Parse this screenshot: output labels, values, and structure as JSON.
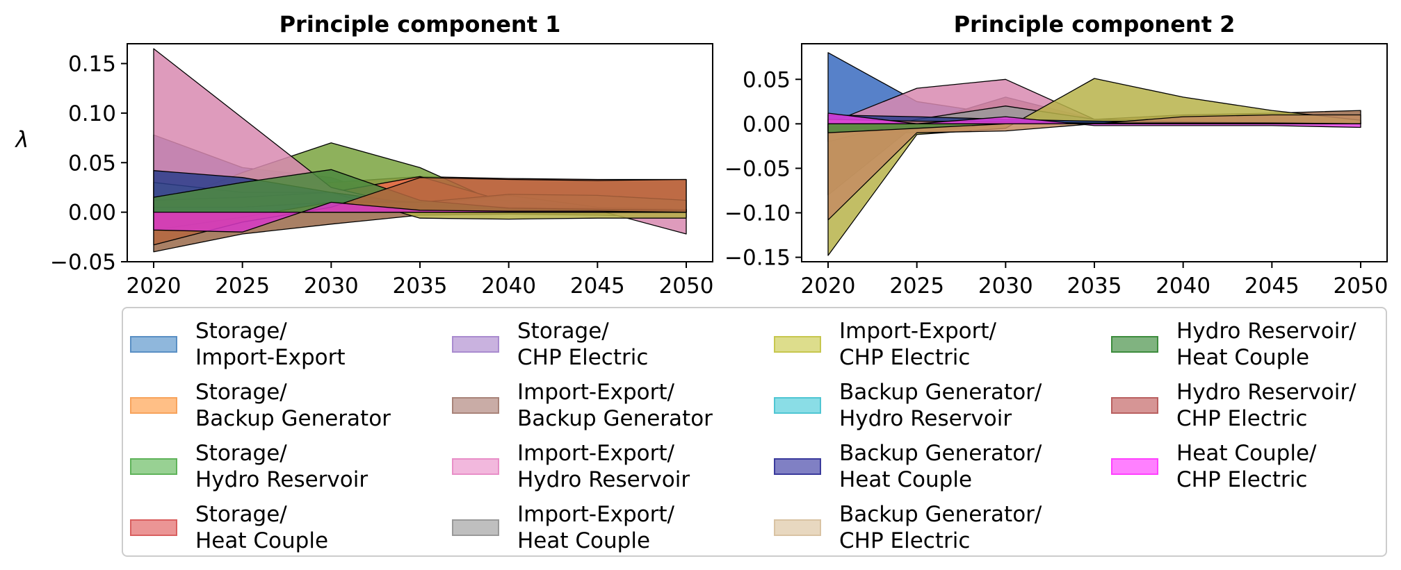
{
  "figure": {
    "ylabel": "λ",
    "legend_placement": "bottom"
  },
  "chart_data": [
    {
      "type": "area",
      "title": "Principle component 1",
      "xlabel": "",
      "ylabel": "λ",
      "x": [
        2020,
        2025,
        2030,
        2035,
        2040,
        2045,
        2050
      ],
      "xticks": [
        "2020",
        "2025",
        "2030",
        "2035",
        "2040",
        "2045",
        "2050"
      ],
      "ylim": [
        -0.05,
        0.17
      ],
      "yticks": [
        -0.05,
        0.0,
        0.05,
        0.1,
        0.15
      ],
      "ytick_labels": [
        "−0.05",
        "0.00",
        "0.05",
        "0.10",
        "0.15"
      ],
      "grid": false,
      "series": [
        {
          "name": "Storage/\nImport-Export",
          "values": [
            0.078,
            0.045,
            0.035,
            0.005,
            0.004,
            0.003,
            0.002
          ],
          "color": "#3a56a8"
        },
        {
          "name": "Storage/\nBackup Generator",
          "values": [
            0.01,
            0.018,
            0.03,
            0.036,
            0.034,
            0.033,
            0.033
          ],
          "color": "#f06a4c"
        },
        {
          "name": "Storage/\nHydro Reservoir",
          "values": [
            0.005,
            0.04,
            0.07,
            0.045,
            0.005,
            0.003,
            0.002
          ],
          "color": "#7aa340"
        },
        {
          "name": "Storage/\nHeat Couple",
          "values": [
            0.005,
            0.01,
            0.02,
            0.036,
            0.01,
            0.004,
            0.003
          ],
          "color": "#f06a4c"
        },
        {
          "name": "Storage/\nCHP Electric",
          "values": [
            0.0,
            0.01,
            0.015,
            0.01,
            0.012,
            0.003,
            0.002
          ],
          "color": "#b39bd6"
        },
        {
          "name": "Import-Export/\nBackup Generator",
          "values": [
            -0.04,
            -0.022,
            -0.012,
            -0.003,
            -0.002,
            -0.003,
            -0.005
          ],
          "color": "#9a6a4a"
        },
        {
          "name": "Import-Export/\nHydro Reservoir",
          "values": [
            0.165,
            0.095,
            0.025,
            0.004,
            0.003,
            0.002,
            -0.022
          ],
          "color": "#d88ab0"
        },
        {
          "name": "Import-Export/\nHeat Couple",
          "values": [
            0.03,
            0.02,
            0.02,
            0.008,
            0.017,
            0.005,
            0.003
          ],
          "color": "#9a9a9a"
        },
        {
          "name": "Import-Export/\nCHP Electric",
          "values": [
            0.012,
            0.015,
            0.02,
            -0.006,
            -0.007,
            -0.006,
            -0.006
          ],
          "color": "#b7b34a"
        },
        {
          "name": "Backup Generator/\nHydro Reservoir",
          "values": [
            0.005,
            0.005,
            0.01,
            0.004,
            0.003,
            0.002,
            0.001
          ],
          "color": "#5fc9d6"
        },
        {
          "name": "Backup Generator/\nHeat Couple",
          "values": [
            0.042,
            0.035,
            0.02,
            0.008,
            0.005,
            0.004,
            0.003
          ],
          "color": "#2c3e8c"
        },
        {
          "name": "Backup Generator/\nCHP Electric",
          "values": [
            -0.018,
            -0.005,
            0.01,
            0.01,
            0.018,
            0.017,
            0.012
          ],
          "color": "#c48d63"
        },
        {
          "name": "Hydro Reservoir/\nHeat Couple",
          "values": [
            0.015,
            0.03,
            0.043,
            0.012,
            0.004,
            0.003,
            0.002
          ],
          "color": "#4d8a40"
        },
        {
          "name": "Hydro Reservoir/\nCHP Electric",
          "values": [
            -0.033,
            -0.01,
            0.005,
            0.035,
            0.033,
            0.032,
            0.033
          ],
          "color": "#b5673f"
        },
        {
          "name": "Heat Couple/\nCHP Electric",
          "values": [
            -0.018,
            -0.02,
            0.01,
            0.002,
            0.001,
            0.001,
            0.0
          ],
          "color": "#d838c8"
        }
      ]
    },
    {
      "type": "area",
      "title": "Principle component 2",
      "xlabel": "",
      "ylabel": "",
      "x": [
        2020,
        2025,
        2030,
        2035,
        2040,
        2045,
        2050
      ],
      "xticks": [
        "2020",
        "2025",
        "2030",
        "2035",
        "2040",
        "2045",
        "2050"
      ],
      "ylim": [
        -0.155,
        0.09
      ],
      "yticks": [
        -0.15,
        -0.1,
        -0.05,
        0.0,
        0.05
      ],
      "ytick_labels": [
        "−0.15",
        "−0.10",
        "−0.05",
        "0.00",
        "0.05"
      ],
      "grid": false,
      "series": [
        {
          "name": "Storage/\nImport-Export",
          "values": [
            0.08,
            0.025,
            0.01,
            0.004,
            0.003,
            0.002,
            0.001
          ],
          "color": "#3a6bbf"
        },
        {
          "name": "Storage/\nBackup Generator",
          "values": [
            0.0,
            0.005,
            0.01,
            0.005,
            0.01,
            0.012,
            0.015
          ],
          "color": "#9a6a4a"
        },
        {
          "name": "Storage/\nHydro Reservoir",
          "values": [
            -0.01,
            -0.01,
            0.0,
            0.003,
            0.002,
            0.001,
            0.0
          ],
          "color": "#7aa340"
        },
        {
          "name": "Storage/\nHeat Couple",
          "values": [
            -0.005,
            0.0,
            0.005,
            0.003,
            0.002,
            0.001,
            0.0
          ],
          "color": "#f06a4c"
        },
        {
          "name": "Storage/\nCHP Electric",
          "values": [
            0.0,
            0.005,
            0.02,
            0.005,
            0.002,
            0.001,
            0.0
          ],
          "color": "#b39bd6"
        },
        {
          "name": "Import-Export/\nBackup Generator",
          "values": [
            -0.08,
            0.0,
            0.03,
            0.005,
            0.003,
            0.002,
            0.001
          ],
          "color": "#7a4a33"
        },
        {
          "name": "Import-Export/\nHydro Reservoir",
          "values": [
            0.0,
            0.04,
            0.05,
            0.005,
            0.003,
            0.002,
            0.001
          ],
          "color": "#d88ab0"
        },
        {
          "name": "Import-Export/\nHeat Couple",
          "values": [
            -0.02,
            0.005,
            0.02,
            0.005,
            0.003,
            0.002,
            0.001
          ],
          "color": "#9a9a9a"
        },
        {
          "name": "Import-Export/\nCHP Electric",
          "values": [
            -0.148,
            -0.012,
            -0.005,
            0.051,
            0.03,
            0.015,
            0.004
          ],
          "color": "#b7b34a"
        },
        {
          "name": "Backup Generator/\nHydro Reservoir",
          "values": [
            0.0,
            0.002,
            0.004,
            0.003,
            0.002,
            0.001,
            0.0
          ],
          "color": "#5fc9d6"
        },
        {
          "name": "Backup Generator/\nHeat Couple",
          "values": [
            0.01,
            0.008,
            0.005,
            0.003,
            0.002,
            0.001,
            0.0
          ],
          "color": "#2c3e8c"
        },
        {
          "name": "Backup Generator/\nCHP Electric",
          "values": [
            -0.108,
            -0.01,
            -0.008,
            0.0,
            0.008,
            0.01,
            0.01
          ],
          "color": "#c48d63"
        },
        {
          "name": "Hydro Reservoir/\nHeat Couple",
          "values": [
            -0.01,
            -0.005,
            0.0,
            0.001,
            0.001,
            0.0,
            0.0
          ],
          "color": "#4d8a40"
        },
        {
          "name": "Hydro Reservoir/\nCHP Electric",
          "values": [
            0.005,
            0.003,
            0.002,
            0.001,
            0.001,
            0.001,
            0.0
          ],
          "color": "#c77e7e"
        },
        {
          "name": "Heat Couple/\nCHP Electric",
          "values": [
            0.012,
            0.0,
            0.008,
            -0.002,
            -0.002,
            -0.002,
            -0.004
          ],
          "color": "#e040e0"
        }
      ]
    }
  ],
  "legend": [
    {
      "label": "Storage/\nImport-Export",
      "color": "#8fb7dc",
      "edge": "#5a8fc4"
    },
    {
      "label": "Storage/\nBackup Generator",
      "color": "#ffbf86",
      "edge": "#f7a35c"
    },
    {
      "label": "Storage/\nHydro Reservoir",
      "color": "#98d193",
      "edge": "#5fb35a"
    },
    {
      "label": "Storage/\nHeat Couple",
      "color": "#eb9595",
      "edge": "#d95f5f"
    },
    {
      "label": "Storage/\nCHP Electric",
      "color": "#c9b2df",
      "edge": "#a98bcf"
    },
    {
      "label": "Import-Export/\nBackup Generator",
      "color": "#c9aca6",
      "edge": "#a88379"
    },
    {
      "label": "Import-Export/\nHydro Reservoir",
      "color": "#f2b8dd",
      "edge": "#e88fc8"
    },
    {
      "label": "Import-Export/\nHeat Couple",
      "color": "#bfbfbf",
      "edge": "#999999"
    },
    {
      "label": "Import-Export/\nCHP Electric",
      "color": "#dddd8c",
      "edge": "#c7c74e"
    },
    {
      "label": "Backup Generator/\nHydro Reservoir",
      "color": "#8adde6",
      "edge": "#4fc6d3"
    },
    {
      "label": "Backup Generator/\nHeat Couple",
      "color": "#8080c4",
      "edge": "#3a3a9c"
    },
    {
      "label": "Backup Generator/\nCHP Electric",
      "color": "#e8d8c0",
      "edge": "#d9c3a3"
    },
    {
      "label": "Hydro Reservoir/\nHeat Couple",
      "color": "#80b380",
      "edge": "#3d8c3d"
    },
    {
      "label": "Hydro Reservoir/\nCHP Electric",
      "color": "#d69595",
      "edge": "#b96060"
    },
    {
      "label": "Heat Couple/\nCHP Electric",
      "color": "#ff80ff",
      "edge": "#ff40ff"
    }
  ]
}
